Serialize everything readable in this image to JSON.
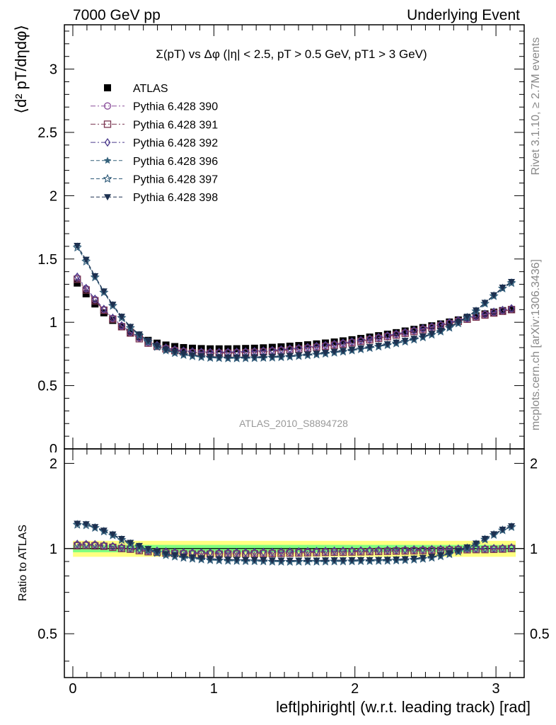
{
  "header": {
    "left": "7000 GeV pp",
    "right": "Underlying Event"
  },
  "side": {
    "rivet": "Rivet 3.1.10, ≥ 2.7M events",
    "mcplots": "mcplots.cern.ch [arXiv:1306.3436]"
  },
  "chart_data": [
    {
      "type": "scatter",
      "title": "Σ(pT) vs Δφ (|η| < 2.5, pT > 0.5 GeV, pT1 > 3 GeV)",
      "ylabel": "⟨d² pT/dηdφ⟩",
      "analysis_label": "ATLAS_2010_S8894728",
      "xlim": [
        -0.06,
        3.2
      ],
      "ylim": [
        0,
        3.35
      ],
      "yticks": [
        "0",
        "0.5",
        "1",
        "1.5",
        "2",
        "2.5",
        "3"
      ],
      "legend_position": "top-left",
      "x": [
        0.0314,
        0.0942,
        0.157,
        0.22,
        0.283,
        0.346,
        0.408,
        0.471,
        0.534,
        0.597,
        0.66,
        0.723,
        0.785,
        0.848,
        0.911,
        0.974,
        1.037,
        1.1,
        1.162,
        1.225,
        1.288,
        1.351,
        1.414,
        1.477,
        1.539,
        1.602,
        1.665,
        1.728,
        1.791,
        1.854,
        1.916,
        1.979,
        2.042,
        2.105,
        2.168,
        2.231,
        2.293,
        2.356,
        2.419,
        2.482,
        2.545,
        2.608,
        2.67,
        2.733,
        2.796,
        2.859,
        2.922,
        2.985,
        3.047,
        3.11
      ],
      "series": [
        {
          "name": "ATLAS",
          "color": "#000000",
          "marker": "filled-square",
          "values": [
            1.31,
            1.225,
            1.145,
            1.075,
            1.015,
            0.965,
            0.92,
            0.885,
            0.857,
            0.835,
            0.82,
            0.808,
            0.8,
            0.795,
            0.792,
            0.79,
            0.79,
            0.79,
            0.791,
            0.793,
            0.795,
            0.798,
            0.802,
            0.806,
            0.811,
            0.816,
            0.822,
            0.829,
            0.836,
            0.844,
            0.853,
            0.862,
            0.872,
            0.883,
            0.894,
            0.906,
            0.918,
            0.931,
            0.944,
            0.958,
            0.972,
            0.987,
            1.002,
            1.018,
            1.034,
            1.05,
            1.066,
            1.08,
            1.092,
            1.1
          ]
        },
        {
          "name": "Pythia 6.428 390",
          "color": "#8a4e9a",
          "marker": "open-circle",
          "values": [
            1.35,
            1.265,
            1.18,
            1.1,
            1.03,
            0.97,
            0.92,
            0.875,
            0.84,
            0.815,
            0.795,
            0.78,
            0.77,
            0.765,
            0.762,
            0.76,
            0.76,
            0.761,
            0.762,
            0.764,
            0.767,
            0.771,
            0.775,
            0.78,
            0.786,
            0.792,
            0.799,
            0.807,
            0.815,
            0.824,
            0.833,
            0.843,
            0.854,
            0.866,
            0.878,
            0.891,
            0.904,
            0.918,
            0.932,
            0.947,
            0.962,
            0.978,
            0.995,
            1.012,
            1.029,
            1.046,
            1.062,
            1.078,
            1.092,
            1.105
          ]
        },
        {
          "name": "Pythia 6.428 391",
          "color": "#7a3550",
          "marker": "open-square",
          "values": [
            1.34,
            1.255,
            1.17,
            1.095,
            1.025,
            0.965,
            0.915,
            0.87,
            0.835,
            0.81,
            0.79,
            0.776,
            0.766,
            0.76,
            0.757,
            0.755,
            0.755,
            0.756,
            0.757,
            0.759,
            0.762,
            0.766,
            0.77,
            0.775,
            0.781,
            0.787,
            0.794,
            0.802,
            0.81,
            0.819,
            0.828,
            0.838,
            0.849,
            0.861,
            0.873,
            0.886,
            0.899,
            0.913,
            0.927,
            0.942,
            0.957,
            0.973,
            0.99,
            1.007,
            1.024,
            1.041,
            1.057,
            1.073,
            1.087,
            1.1
          ]
        },
        {
          "name": "Pythia 6.428 392",
          "color": "#4b3a8c",
          "marker": "open-diamond",
          "values": [
            1.36,
            1.27,
            1.185,
            1.105,
            1.035,
            0.975,
            0.925,
            0.88,
            0.845,
            0.82,
            0.8,
            0.785,
            0.775,
            0.77,
            0.767,
            0.765,
            0.765,
            0.766,
            0.767,
            0.769,
            0.772,
            0.776,
            0.78,
            0.785,
            0.791,
            0.797,
            0.804,
            0.812,
            0.82,
            0.829,
            0.838,
            0.848,
            0.859,
            0.871,
            0.883,
            0.896,
            0.909,
            0.923,
            0.937,
            0.952,
            0.967,
            0.983,
            1.0,
            1.017,
            1.034,
            1.051,
            1.067,
            1.083,
            1.097,
            1.11
          ]
        },
        {
          "name": "Pythia 6.428 396",
          "color": "#33607a",
          "marker": "filled-star",
          "values": [
            1.6,
            1.49,
            1.36,
            1.24,
            1.135,
            1.04,
            0.96,
            0.9,
            0.85,
            0.81,
            0.78,
            0.76,
            0.745,
            0.735,
            0.728,
            0.722,
            0.72,
            0.718,
            0.718,
            0.719,
            0.72,
            0.722,
            0.724,
            0.727,
            0.731,
            0.736,
            0.742,
            0.748,
            0.755,
            0.763,
            0.771,
            0.78,
            0.79,
            0.8,
            0.811,
            0.823,
            0.836,
            0.85,
            0.866,
            0.884,
            0.905,
            0.93,
            0.96,
            0.995,
            1.04,
            1.09,
            1.15,
            1.21,
            1.27,
            1.315
          ]
        },
        {
          "name": "Pythia 6.428 397",
          "color": "#2e5a78",
          "marker": "open-star",
          "values": [
            1.59,
            1.48,
            1.355,
            1.235,
            1.13,
            1.035,
            0.955,
            0.895,
            0.845,
            0.806,
            0.777,
            0.757,
            0.742,
            0.732,
            0.725,
            0.719,
            0.717,
            0.715,
            0.715,
            0.716,
            0.717,
            0.719,
            0.721,
            0.724,
            0.728,
            0.733,
            0.739,
            0.745,
            0.752,
            0.76,
            0.768,
            0.777,
            0.787,
            0.797,
            0.808,
            0.82,
            0.833,
            0.847,
            0.863,
            0.881,
            0.902,
            0.927,
            0.957,
            0.992,
            1.037,
            1.087,
            1.147,
            1.207,
            1.267,
            1.31
          ]
        },
        {
          "name": "Pythia 6.428 398",
          "color": "#1d3050",
          "marker": "filled-triangle-down",
          "values": [
            1.605,
            1.495,
            1.365,
            1.245,
            1.14,
            1.045,
            0.965,
            0.905,
            0.855,
            0.815,
            0.785,
            0.765,
            0.75,
            0.74,
            0.733,
            0.727,
            0.725,
            0.723,
            0.723,
            0.724,
            0.725,
            0.727,
            0.729,
            0.732,
            0.736,
            0.741,
            0.747,
            0.753,
            0.76,
            0.768,
            0.776,
            0.785,
            0.795,
            0.805,
            0.816,
            0.828,
            0.841,
            0.855,
            0.871,
            0.889,
            0.91,
            0.935,
            0.965,
            1.0,
            1.045,
            1.095,
            1.155,
            1.215,
            1.275,
            1.32
          ]
        }
      ]
    },
    {
      "type": "scatter",
      "title": "",
      "ylabel": "Ratio to ATLAS",
      "xlabel": "left|phiright| (w.r.t. leading track) [rad]",
      "xlim": [
        -0.06,
        3.2
      ],
      "ylim": [
        0.35,
        2.25
      ],
      "xticks": [
        "0",
        "1",
        "2",
        "3"
      ],
      "yticks": [
        "0.5",
        "1",
        "2"
      ],
      "reference_line": 1,
      "bands": [
        {
          "name": "yellow",
          "color": "#ffff80",
          "half_width": 0.065
        },
        {
          "name": "green",
          "color": "#80ff80",
          "half_width": 0.03
        }
      ]
    }
  ]
}
